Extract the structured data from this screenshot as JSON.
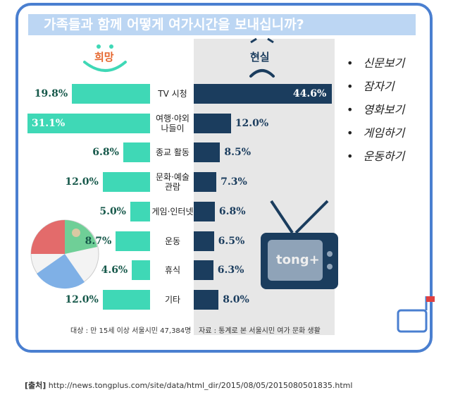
{
  "chart_data": {
    "type": "butterfly_bar",
    "title": "가족들과 함께 어떻게 여가시간을 보내십니까?",
    "categories": [
      "TV 시청",
      "여행·야외\n나들이",
      "종교 활동",
      "문화·예술\n관람",
      "게임·인터넷",
      "운동",
      "휴식",
      "기타"
    ],
    "series": [
      {
        "name": "희망",
        "color": "#3fd8b6",
        "values": [
          19.8,
          31.1,
          6.8,
          12.0,
          5.0,
          8.7,
          4.6,
          12.0
        ],
        "value_labels": [
          "19.8%",
          "31.1%",
          "6.8%",
          "12.0%",
          "5.0%",
          "8.7%",
          "4.6%",
          "12.0%"
        ]
      },
      {
        "name": "현실",
        "color": "#1b3d5e",
        "values": [
          44.6,
          12.0,
          8.5,
          7.3,
          6.8,
          6.5,
          6.3,
          8.0
        ],
        "value_labels": [
          "44.6%",
          "12.0%",
          "8.5%",
          "7.3%",
          "6.8%",
          "6.5%",
          "6.3%",
          "8.0%"
        ]
      }
    ],
    "notes": [
      "대상 : 만 15세 이상 서울시민 47,384명",
      "자료 : 통계로 본 서울시민 여가 문화 생활"
    ],
    "tv_logo": "tong+"
  },
  "side_list": [
    "신문보기",
    "잠자기",
    "영화보기",
    "게임하기",
    "운동하기"
  ],
  "source": {
    "label": "[출처]",
    "url": "http://news.tongplus.com/site/data/html_dir/2015/08/05/2015080501835.html"
  }
}
